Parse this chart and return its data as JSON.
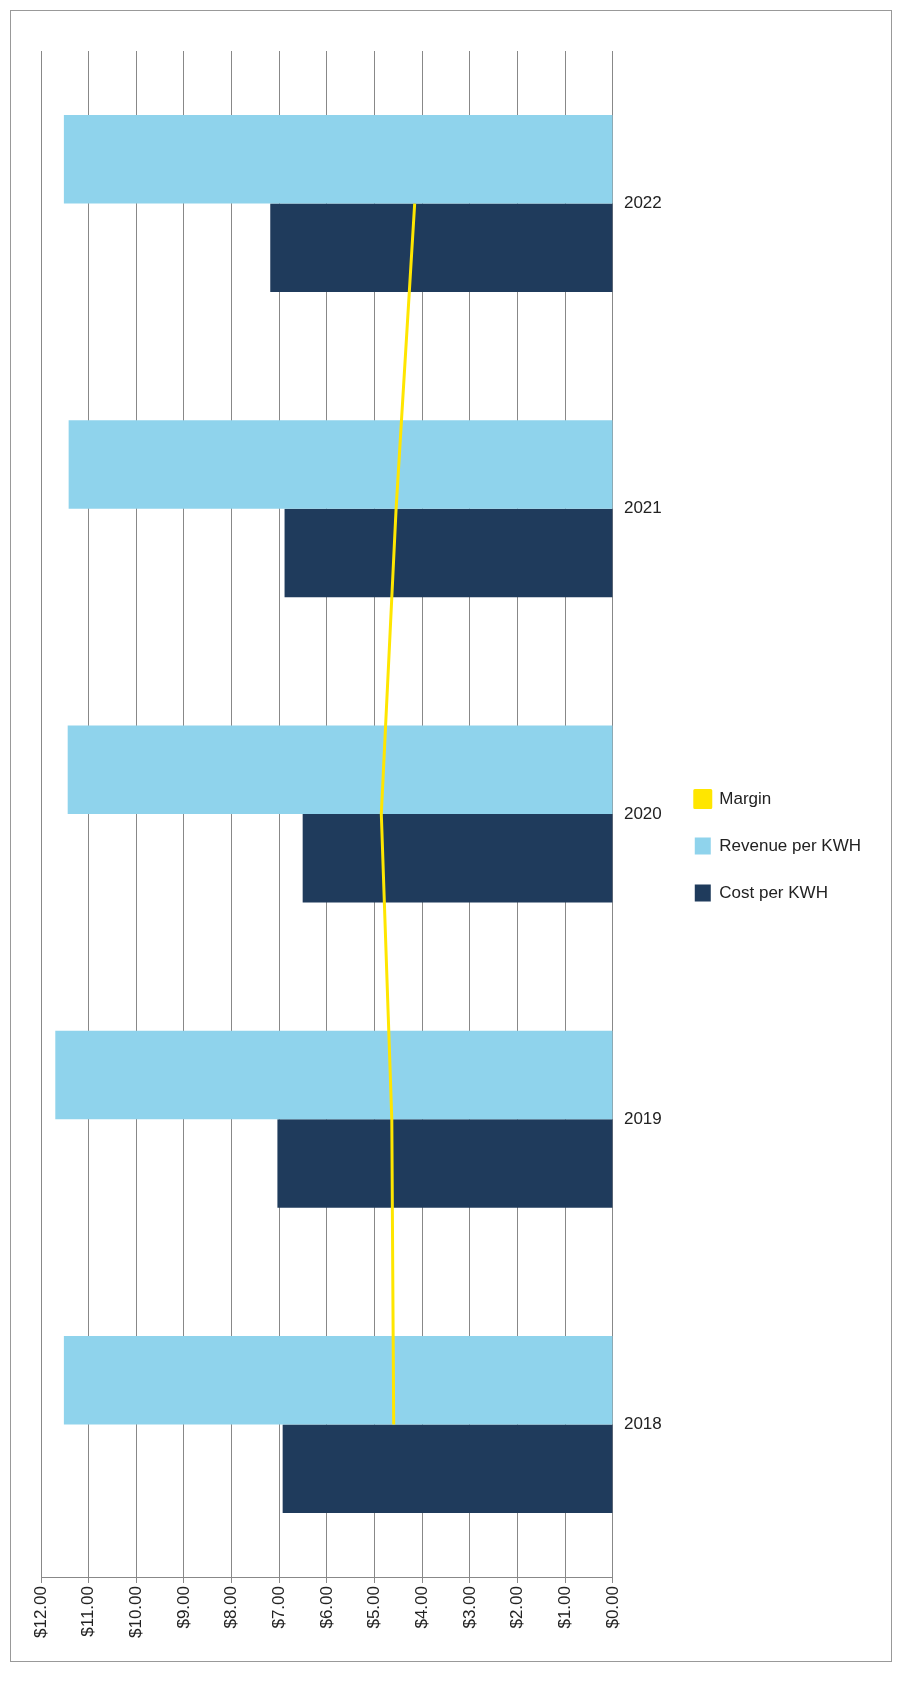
{
  "chart_data": {
    "type": "bar",
    "orientation": "horizontal",
    "categories": [
      "2022",
      "2021",
      "2020",
      "2019",
      "2018"
    ],
    "series": [
      {
        "name": "Revenue per KWH",
        "color": "#8fd3ec",
        "values": [
          11.52,
          11.42,
          11.44,
          11.7,
          11.52
        ]
      },
      {
        "name": "Cost per KWH",
        "color": "#1f3b5c",
        "values": [
          7.19,
          6.89,
          6.51,
          7.04,
          6.93
        ]
      },
      {
        "name": "Margin",
        "type": "line",
        "color": "#ffe600",
        "values": [
          4.16,
          4.55,
          4.86,
          4.64,
          4.6
        ]
      }
    ],
    "xlim": [
      12,
      0
    ],
    "xticks": [
      {
        "value": 12,
        "label": "$12.00"
      },
      {
        "value": 11,
        "label": "$11.00"
      },
      {
        "value": 10,
        "label": "$10.00"
      },
      {
        "value": 9,
        "label": "$9.00"
      },
      {
        "value": 8,
        "label": "$8.00"
      },
      {
        "value": 7,
        "label": "$7.00"
      },
      {
        "value": 6,
        "label": "$6.00"
      },
      {
        "value": 5,
        "label": "$5.00"
      },
      {
        "value": 4,
        "label": "$4.00"
      },
      {
        "value": 3,
        "label": "$3.00"
      },
      {
        "value": 2,
        "label": "$2.00"
      },
      {
        "value": 1,
        "label": "$1.00"
      },
      {
        "value": 0,
        "label": "$0.00"
      }
    ],
    "grid": "x",
    "legend": "right",
    "marker": "none",
    "line_style": "solid"
  }
}
